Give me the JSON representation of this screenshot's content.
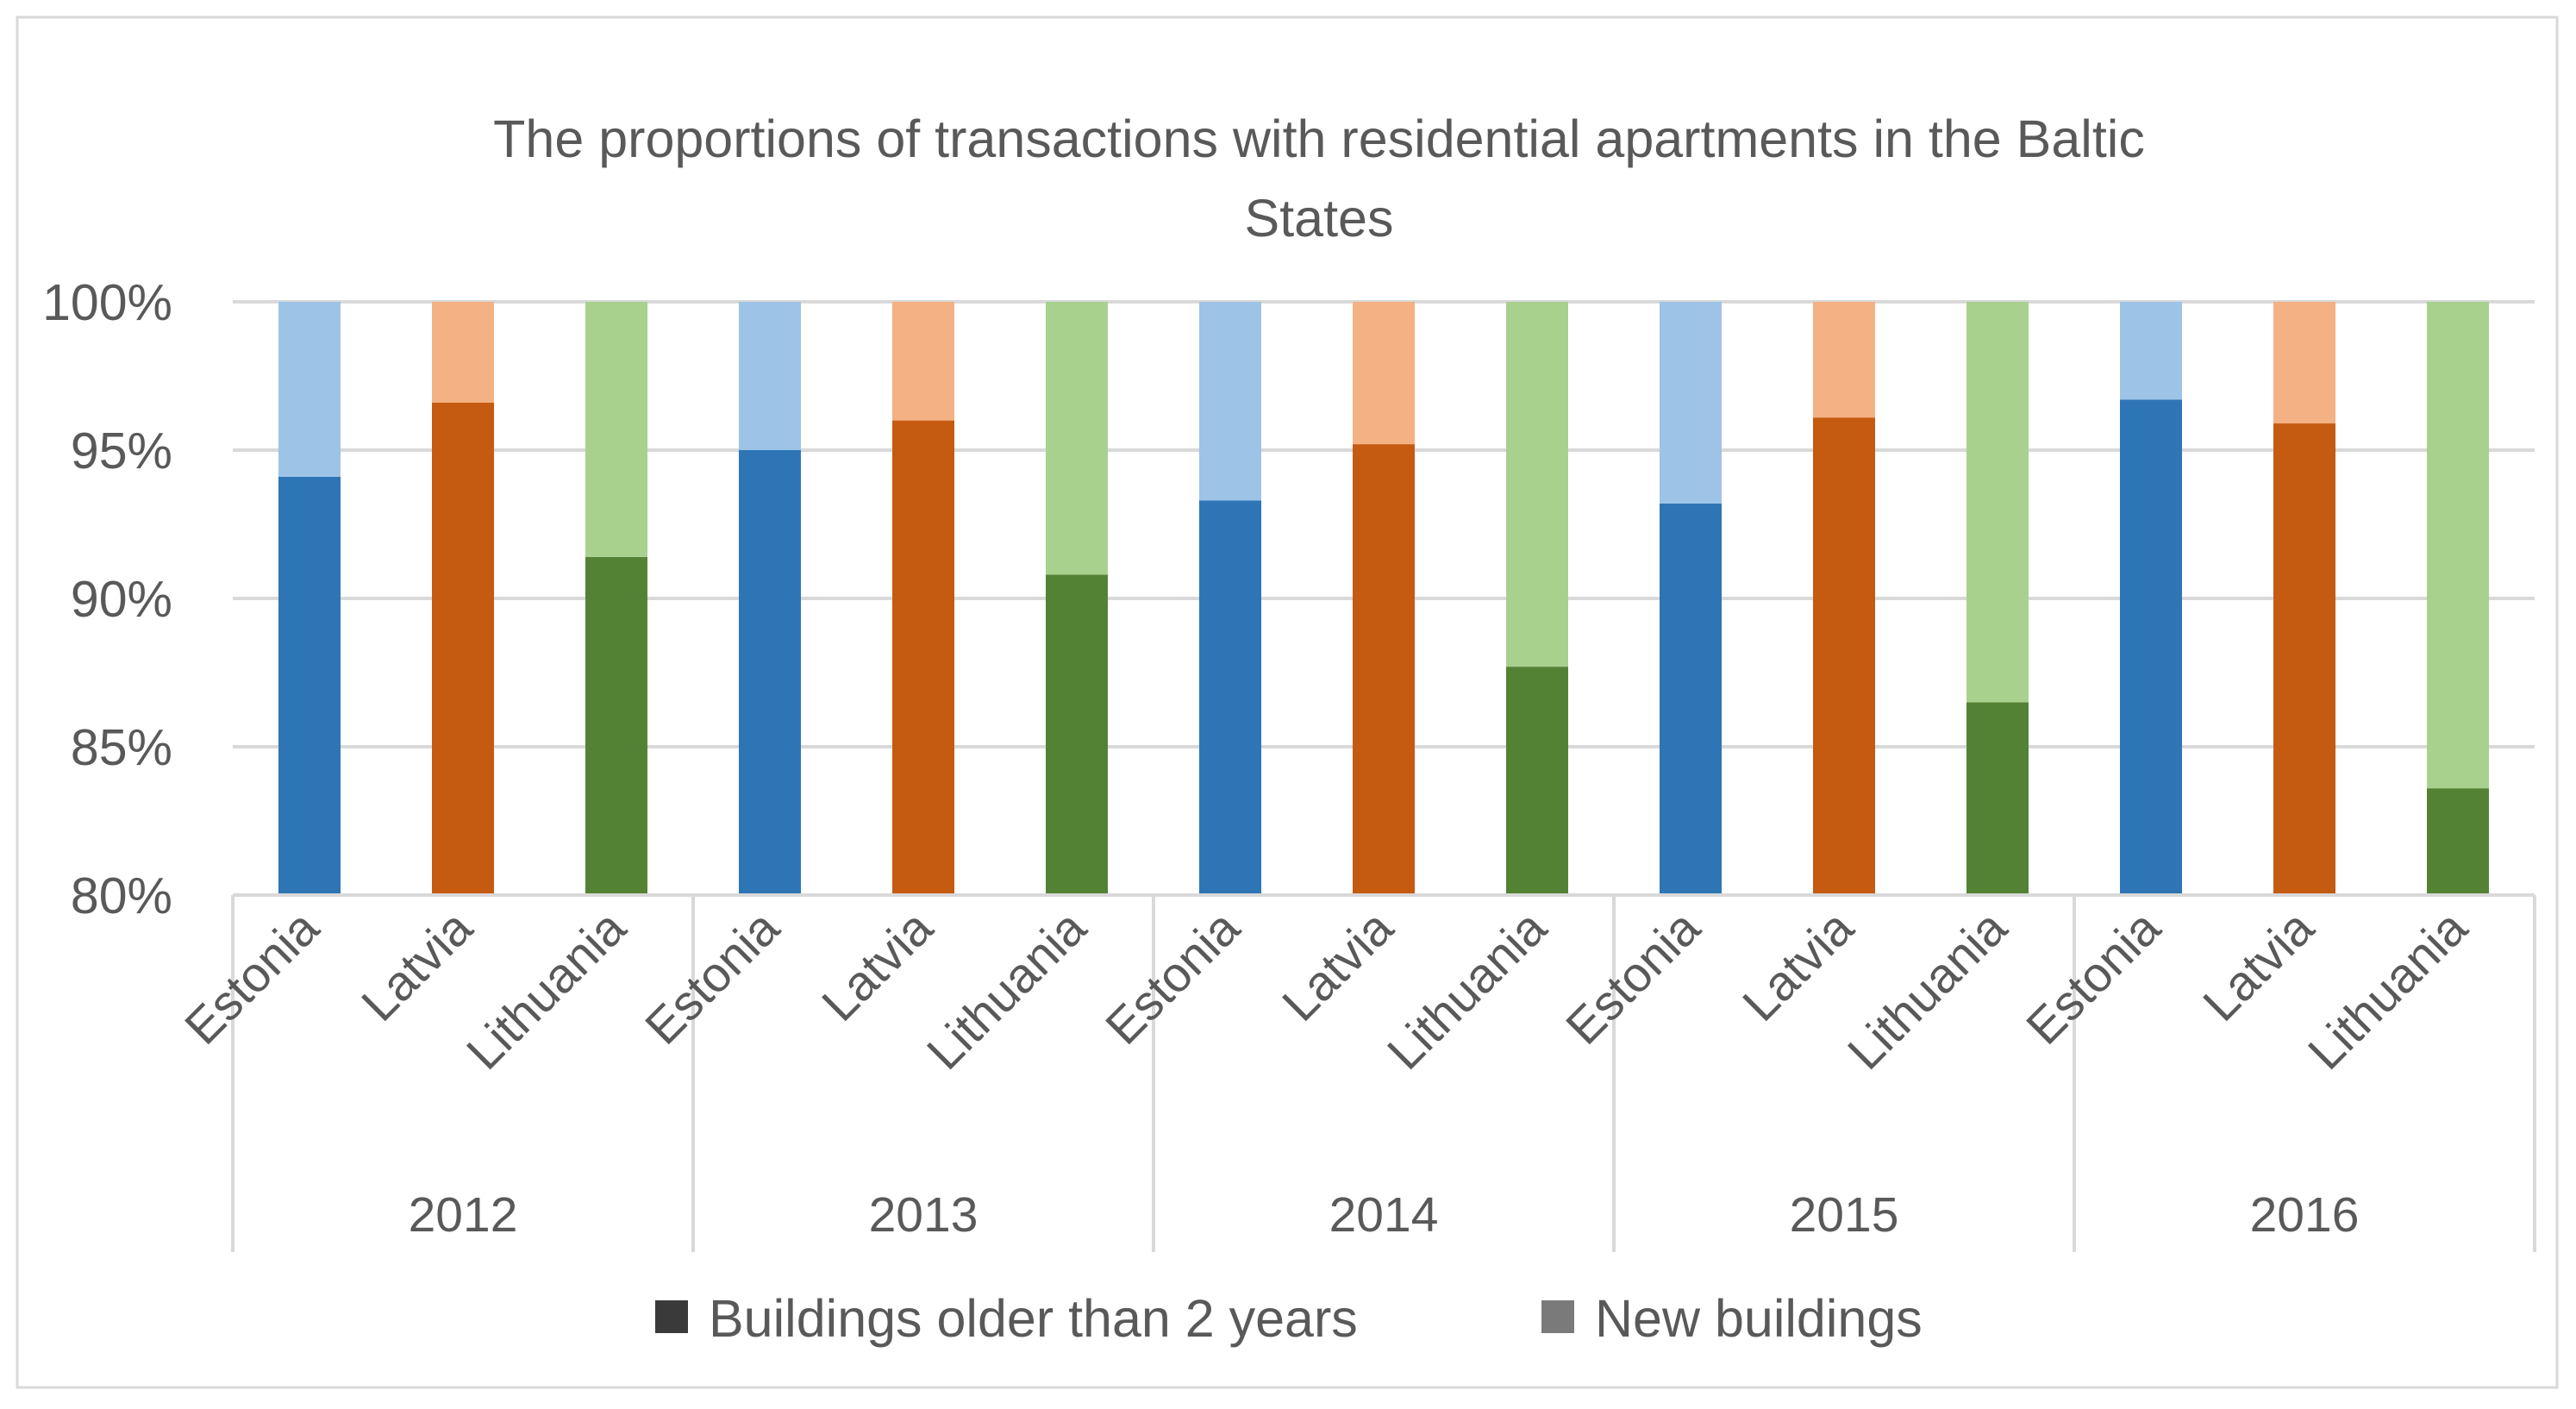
{
  "chart_data": {
    "type": "bar",
    "stacked": true,
    "title_lines": [
      "The proportions of transactions with residential apartments in the Baltic",
      "States"
    ],
    "xlabel": "",
    "ylabel": "",
    "ylim": [
      80,
      100
    ],
    "y_ticks": [
      {
        "value": 100,
        "label": "100%"
      },
      {
        "value": 95,
        "label": "95%"
      },
      {
        "value": 90,
        "label": "90%"
      },
      {
        "value": 85,
        "label": "85%"
      },
      {
        "value": 80,
        "label": "80%"
      }
    ],
    "grid": true,
    "legend_position": "bottom",
    "groups": [
      {
        "label": "2012",
        "bars": [
          {
            "country": "Estonia",
            "older_than_2_years": 94.1,
            "new_buildings": 5.9
          },
          {
            "country": "Latvia",
            "older_than_2_years": 96.6,
            "new_buildings": 3.4
          },
          {
            "country": "Lithuania",
            "older_than_2_years": 91.4,
            "new_buildings": 8.6
          }
        ]
      },
      {
        "label": "2013",
        "bars": [
          {
            "country": "Estonia",
            "older_than_2_years": 95.0,
            "new_buildings": 5.0
          },
          {
            "country": "Latvia",
            "older_than_2_years": 96.0,
            "new_buildings": 4.0
          },
          {
            "country": "Lithuania",
            "older_than_2_years": 90.8,
            "new_buildings": 9.2
          }
        ]
      },
      {
        "label": "2014",
        "bars": [
          {
            "country": "Estonia",
            "older_than_2_years": 93.3,
            "new_buildings": 6.7
          },
          {
            "country": "Latvia",
            "older_than_2_years": 95.2,
            "new_buildings": 4.8
          },
          {
            "country": "Lithuania",
            "older_than_2_years": 87.7,
            "new_buildings": 12.3
          }
        ]
      },
      {
        "label": "2015",
        "bars": [
          {
            "country": "Estonia",
            "older_than_2_years": 93.2,
            "new_buildings": 6.8
          },
          {
            "country": "Latvia",
            "older_than_2_years": 96.1,
            "new_buildings": 3.9
          },
          {
            "country": "Lithuania",
            "older_than_2_years": 86.5,
            "new_buildings": 13.5
          }
        ]
      },
      {
        "label": "2016",
        "bars": [
          {
            "country": "Estonia",
            "older_than_2_years": 96.7,
            "new_buildings": 3.3
          },
          {
            "country": "Latvia",
            "older_than_2_years": 95.9,
            "new_buildings": 4.1
          },
          {
            "country": "Lithuania",
            "older_than_2_years": 83.6,
            "new_buildings": 16.4
          }
        ]
      }
    ],
    "series": [
      {
        "key": "older_than_2_years",
        "name": "Buildings older than 2 years",
        "legend_color": "#3a3a3a"
      },
      {
        "key": "new_buildings",
        "name": "New buildings",
        "legend_color": "#7a7a7a"
      }
    ],
    "country_colors": {
      "Estonia": {
        "older_than_2_years": "#2e75b6",
        "new_buildings": "#9dc3e6"
      },
      "Latvia": {
        "older_than_2_years": "#c55a11",
        "new_buildings": "#f4b183"
      },
      "Lithuania": {
        "older_than_2_years": "#548235",
        "new_buildings": "#a9d18e"
      }
    },
    "gridline_color": "#d9d9d9",
    "text_color": "#595959"
  }
}
